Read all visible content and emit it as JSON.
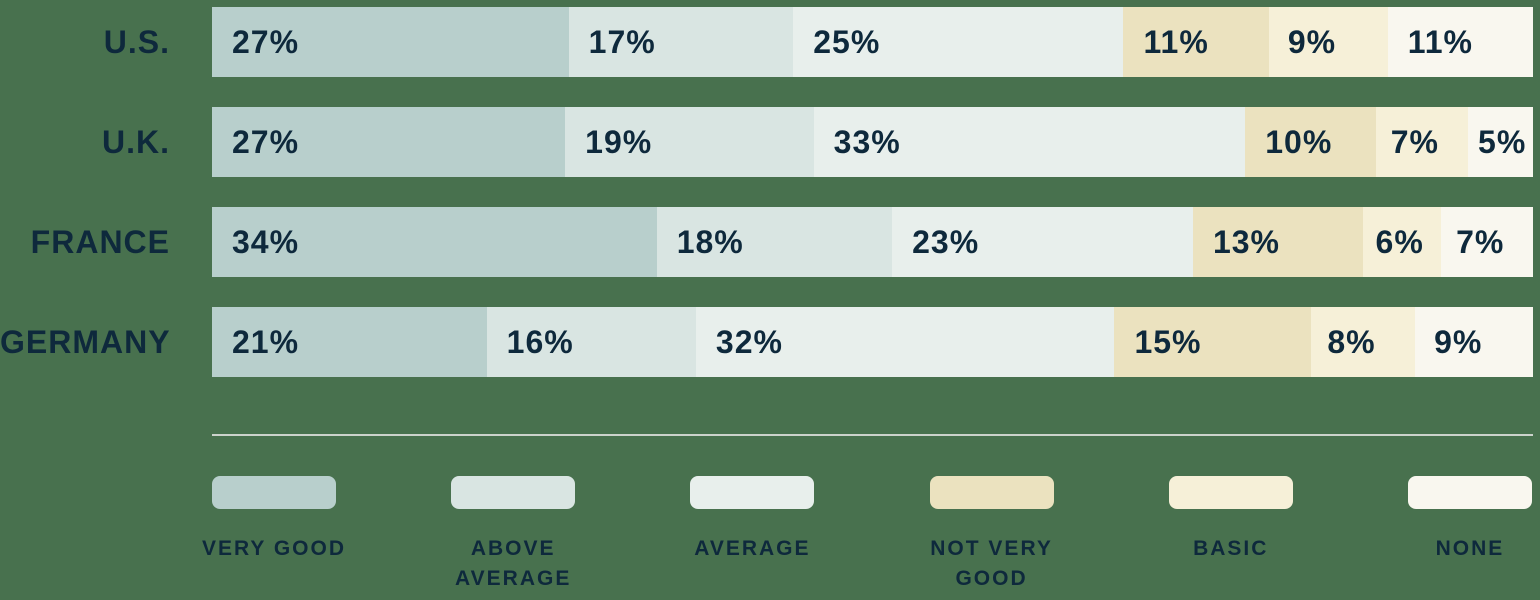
{
  "colors": {
    "background": "#48714e",
    "text": "#0e293c",
    "divider": "#ccd3cc"
  },
  "chart_data": {
    "type": "bar",
    "variant": "horizontal-stacked",
    "value_suffix": "%",
    "xlim": [
      0,
      100
    ],
    "grid": false,
    "legend_position": "bottom",
    "categories": [
      "U.S.",
      "U.K.",
      "FRANCE",
      "GERMANY"
    ],
    "series": [
      {
        "name": "VERY GOOD",
        "color": "#b8cfcc",
        "values": [
          27,
          27,
          34,
          21
        ]
      },
      {
        "name": "ABOVE AVERAGE",
        "color": "#d9e5e2",
        "values": [
          17,
          19,
          18,
          16
        ]
      },
      {
        "name": "AVERAGE",
        "color": "#e8efec",
        "values": [
          25,
          33,
          23,
          32
        ]
      },
      {
        "name": "NOT VERY GOOD",
        "color": "#ebe2bf",
        "values": [
          11,
          10,
          13,
          15
        ]
      },
      {
        "name": "BASIC",
        "color": "#f6f0d8",
        "values": [
          9,
          7,
          6,
          8
        ]
      },
      {
        "name": "NONE",
        "color": "#f9f7ef",
        "values": [
          11,
          5,
          7,
          9
        ]
      }
    ],
    "legend": [
      {
        "label": "VERY GOOD",
        "color": "#b8cfcc"
      },
      {
        "label": "ABOVE\nAVERAGE",
        "color": "#d9e5e2"
      },
      {
        "label": "AVERAGE",
        "color": "#e8efec"
      },
      {
        "label": "NOT VERY\nGOOD",
        "color": "#ebe2bf"
      },
      {
        "label": "BASIC",
        "color": "#f6f0d8"
      },
      {
        "label": "NONE",
        "color": "#f9f7ef"
      }
    ]
  }
}
